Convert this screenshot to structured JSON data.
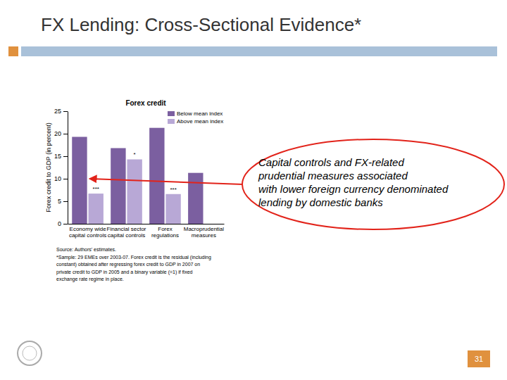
{
  "slide": {
    "title": "FX Lending: Cross-Sectional Evidence*",
    "callout_lines": [
      "Capital controls and FX-related",
      "prudential measures associated",
      "with lower foreign currency denominated",
      "lending by domestic banks"
    ],
    "source_lines": [
      "Source: Authors' estimates.",
      "*Sample: 29 EMEs over 2003-07. Forex credit is the residual (including",
      "constant) obtained after regressing forex credit to GDP in 2007 on",
      "private credit to GDP in 2005 and a binary variable (=1) if fixed",
      "exchange rate regime in place."
    ],
    "page_number": "31"
  },
  "chart_data": {
    "type": "bar",
    "title": "Forex credit",
    "y_label": "Forex credit to GDP (in percent)",
    "categories": [
      "Economy wide capital controls",
      "Financial sector capital controls",
      "Forex regulations",
      "Macroprudential measures"
    ],
    "series": [
      {
        "name": "Below mean index",
        "color": "#7b5fa0",
        "values": [
          19.3,
          16.8,
          21.3,
          11.3
        ]
      },
      {
        "name": "Above mean index",
        "color": "#b8a8d6",
        "values": [
          6.7,
          14.3,
          6.6,
          null
        ],
        "significance": [
          "***",
          "*",
          "***",
          null
        ]
      }
    ],
    "ylim": [
      0,
      25
    ],
    "yticks": [
      0,
      5,
      10,
      15,
      20,
      25
    ],
    "grid": false,
    "legend": "upper right"
  }
}
